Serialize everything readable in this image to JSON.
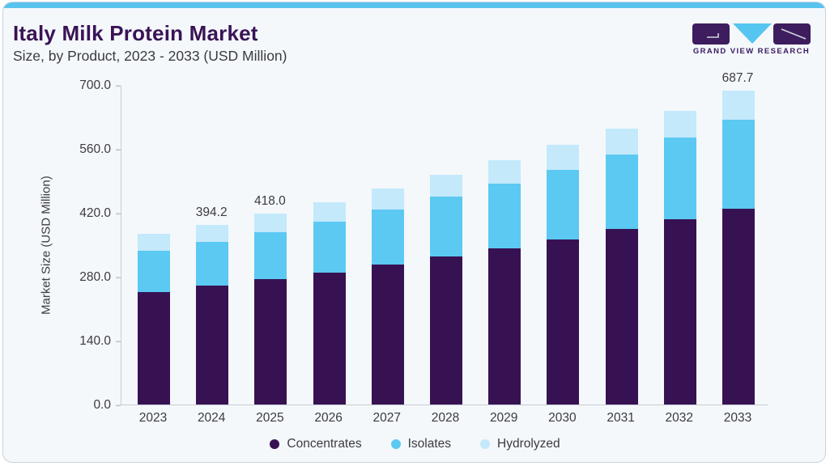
{
  "header": {
    "title": "Italy Milk Protein Market",
    "subtitle": "Size, by Product, 2023 - 2033 (USD Million)"
  },
  "logo": {
    "text": "GRAND VIEW RESEARCH",
    "purple": "#3d1d5e",
    "blue": "#56c5ef"
  },
  "colors": {
    "card_background": "#f4f8fb",
    "top_strip": "#58c4ee",
    "title_text": "#3a1356",
    "body_text": "#3b3b41",
    "axis_line": "#c9ccd3"
  },
  "chart_data": {
    "type": "bar",
    "stacked": true,
    "title": "Italy Milk Protein Market",
    "subtitle": "Size, by Product, 2023 - 2033 (USD Million)",
    "ylabel": "Market Size (USD Million)",
    "xlabel": "",
    "ylim": [
      0,
      700
    ],
    "yticks": [
      700,
      560,
      420,
      280,
      140,
      0
    ],
    "grid": false,
    "legend_position": "bottom",
    "categories": [
      "2023",
      "2024",
      "2025",
      "2026",
      "2027",
      "2028",
      "2029",
      "2030",
      "2031",
      "2032",
      "2033"
    ],
    "series": [
      {
        "name": "Concentrates",
        "color": "#371253",
        "values": [
          246.4,
          260.3,
          274.7,
          288.5,
          305.8,
          323.8,
          341.8,
          361.1,
          383.9,
          406.6,
          429.5
        ]
      },
      {
        "name": "Isolates",
        "color": "#5bc9f2",
        "values": [
          90.8,
          96.4,
          103.2,
          112.7,
          121.3,
          130.9,
          142.9,
          153.5,
          163.8,
          178.9,
          194.4
        ]
      },
      {
        "name": "Hydrolyzed",
        "color": "#c3e9fb",
        "values": [
          36.5,
          37.5,
          40.1,
          41.4,
          45.6,
          48.0,
          49.7,
          54.0,
          56.4,
          58.2,
          63.8
        ]
      }
    ],
    "totals": [
      373.7,
      394.2,
      418.0,
      442.6,
      472.7,
      502.7,
      534.4,
      568.6,
      604.1,
      643.7,
      687.7
    ],
    "visible_total_labels": {
      "2024": "394.2",
      "2025": "418.0",
      "2033": "687.7"
    }
  }
}
